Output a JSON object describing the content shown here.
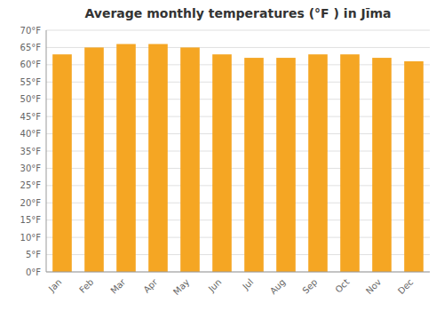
{
  "chart_data": {
    "type": "bar",
    "title": "Average monthly temperatures (°F ) in Jīma",
    "categories": [
      "Jan",
      "Feb",
      "Mar",
      "Apr",
      "May",
      "Jun",
      "Jul",
      "Aug",
      "Sep",
      "Oct",
      "Nov",
      "Dec"
    ],
    "values": [
      63,
      65,
      66,
      66,
      65,
      63,
      62,
      62,
      63,
      63,
      62,
      61
    ],
    "color": "#F5A623",
    "ylim": [
      0,
      70
    ],
    "yticks": [
      {
        "value": 0,
        "label": "0°F"
      },
      {
        "value": 5,
        "label": "5°F"
      },
      {
        "value": 10,
        "label": "10°F"
      },
      {
        "value": 15,
        "label": "15°F"
      },
      {
        "value": 20,
        "label": "20°F"
      },
      {
        "value": 25,
        "label": "25°F"
      },
      {
        "value": 30,
        "label": "30°F"
      },
      {
        "value": 35,
        "label": "35°F"
      },
      {
        "value": 40,
        "label": "40°F"
      },
      {
        "value": 45,
        "label": "45°F"
      },
      {
        "value": 50,
        "label": "50°F"
      },
      {
        "value": 55,
        "label": "55°F"
      },
      {
        "value": 60,
        "label": "60°F"
      },
      {
        "value": 65,
        "label": "65°F"
      },
      {
        "value": 70,
        "label": "70°F"
      }
    ],
    "grid": true
  }
}
